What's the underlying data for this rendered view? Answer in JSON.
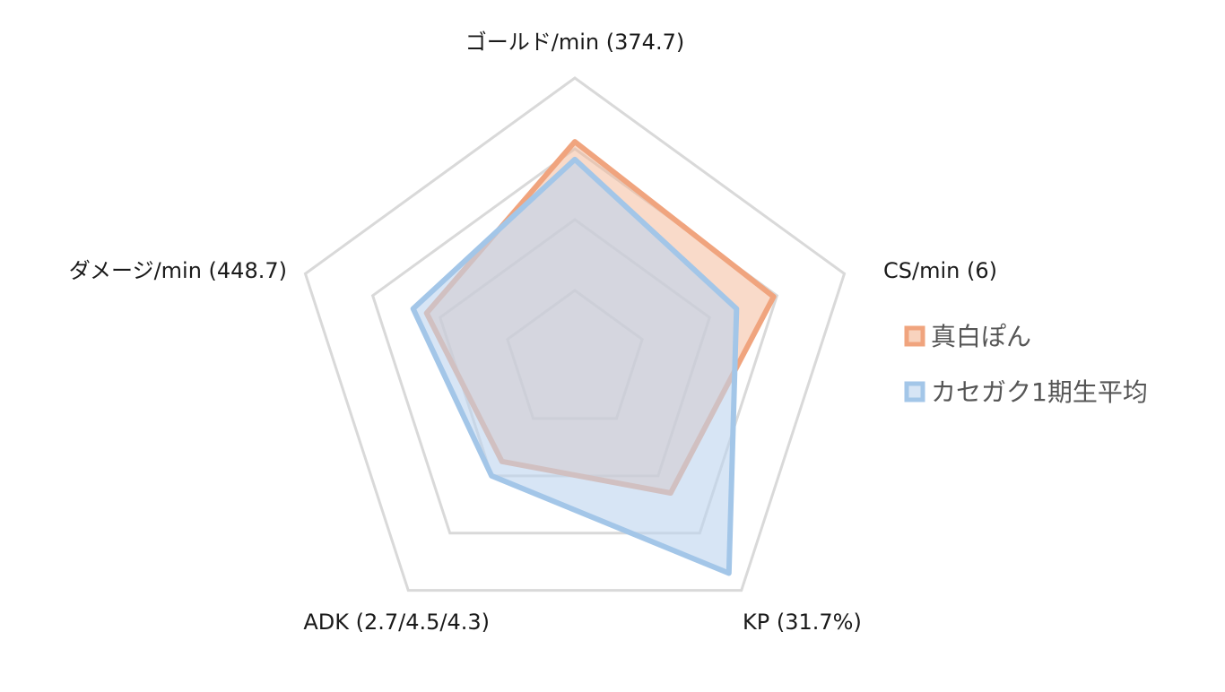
{
  "chart_data": {
    "type": "radar",
    "axes": [
      "ゴールド/min (374.7)",
      "CS/min (6)",
      "KP (31.7%)",
      "ADK (2.7/4.5/4.3)",
      "ダメージ/min (448.7)"
    ],
    "rings": 4,
    "range": [
      0,
      4
    ],
    "grid": true,
    "legend_position": "right",
    "series": [
      {
        "name": "真白ぽん",
        "values": [
          3.1,
          2.95,
          2.3,
          1.75,
          2.2
        ],
        "color": "#f0a47e",
        "fill": "#f4b593",
        "fill_opacity": 0.5
      },
      {
        "name": "カセガク1期生平均",
        "values": [
          2.85,
          2.4,
          3.7,
          2.0,
          2.4
        ],
        "color": "#a3c6e8",
        "fill": "#bcd4ee",
        "fill_opacity": 0.6
      }
    ]
  }
}
